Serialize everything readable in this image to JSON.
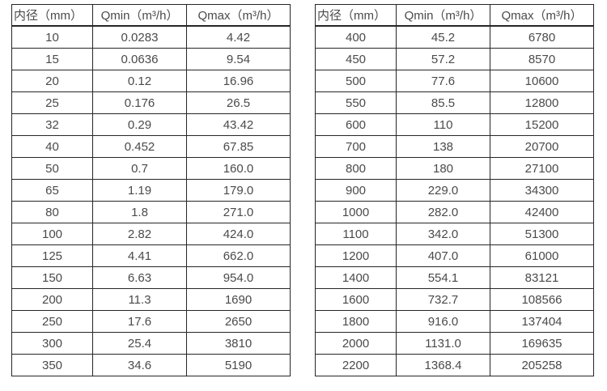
{
  "page": {
    "background_color": "#ffffff",
    "border_color": "#262626",
    "text_color": "#4a4a4a"
  },
  "tables": [
    {
      "name": "flow-spec-table-small-diameters",
      "headers": [
        "内径（mm）",
        "Qmin（m³/h）",
        "Qmax（m³/h）"
      ],
      "rows": [
        [
          "10",
          "0.0283",
          "4.42"
        ],
        [
          "15",
          "0.0636",
          "9.54"
        ],
        [
          "20",
          "0.12",
          "16.96"
        ],
        [
          "25",
          "0.176",
          "26.5"
        ],
        [
          "32",
          "0.29",
          "43.42"
        ],
        [
          "40",
          "0.452",
          "67.85"
        ],
        [
          "50",
          "0.7",
          "160.0"
        ],
        [
          "65",
          "1.19",
          "179.0"
        ],
        [
          "80",
          "1.8",
          "271.0"
        ],
        [
          "100",
          "2.82",
          "424.0"
        ],
        [
          "125",
          "4.41",
          "662.0"
        ],
        [
          "150",
          "6.63",
          "954.0"
        ],
        [
          "200",
          "11.3",
          "1690"
        ],
        [
          "250",
          "17.6",
          "2650"
        ],
        [
          "300",
          "25.4",
          "3810"
        ],
        [
          "350",
          "34.6",
          "5190"
        ]
      ]
    },
    {
      "name": "flow-spec-table-large-diameters",
      "headers": [
        "内径（mm）",
        "Qmin（m³/h）",
        "Qmax（m³/h）"
      ],
      "rows": [
        [
          "400",
          "45.2",
          "6780"
        ],
        [
          "450",
          "57.2",
          "8570"
        ],
        [
          "500",
          "77.6",
          "10600"
        ],
        [
          "550",
          "85.5",
          "12800"
        ],
        [
          "600",
          "110",
          "15200"
        ],
        [
          "700",
          "138",
          "20700"
        ],
        [
          "800",
          "180",
          "27100"
        ],
        [
          "900",
          "229.0",
          "34300"
        ],
        [
          "1000",
          "282.0",
          "42400"
        ],
        [
          "1100",
          "342.0",
          "51300"
        ],
        [
          "1200",
          "407.0",
          "61000"
        ],
        [
          "1400",
          "554.1",
          "83121"
        ],
        [
          "1600",
          "732.7",
          "108566"
        ],
        [
          "1800",
          "916.0",
          "137404"
        ],
        [
          "2000",
          "1131.0",
          "169635"
        ],
        [
          "2200",
          "1368.4",
          "205258"
        ]
      ]
    }
  ]
}
